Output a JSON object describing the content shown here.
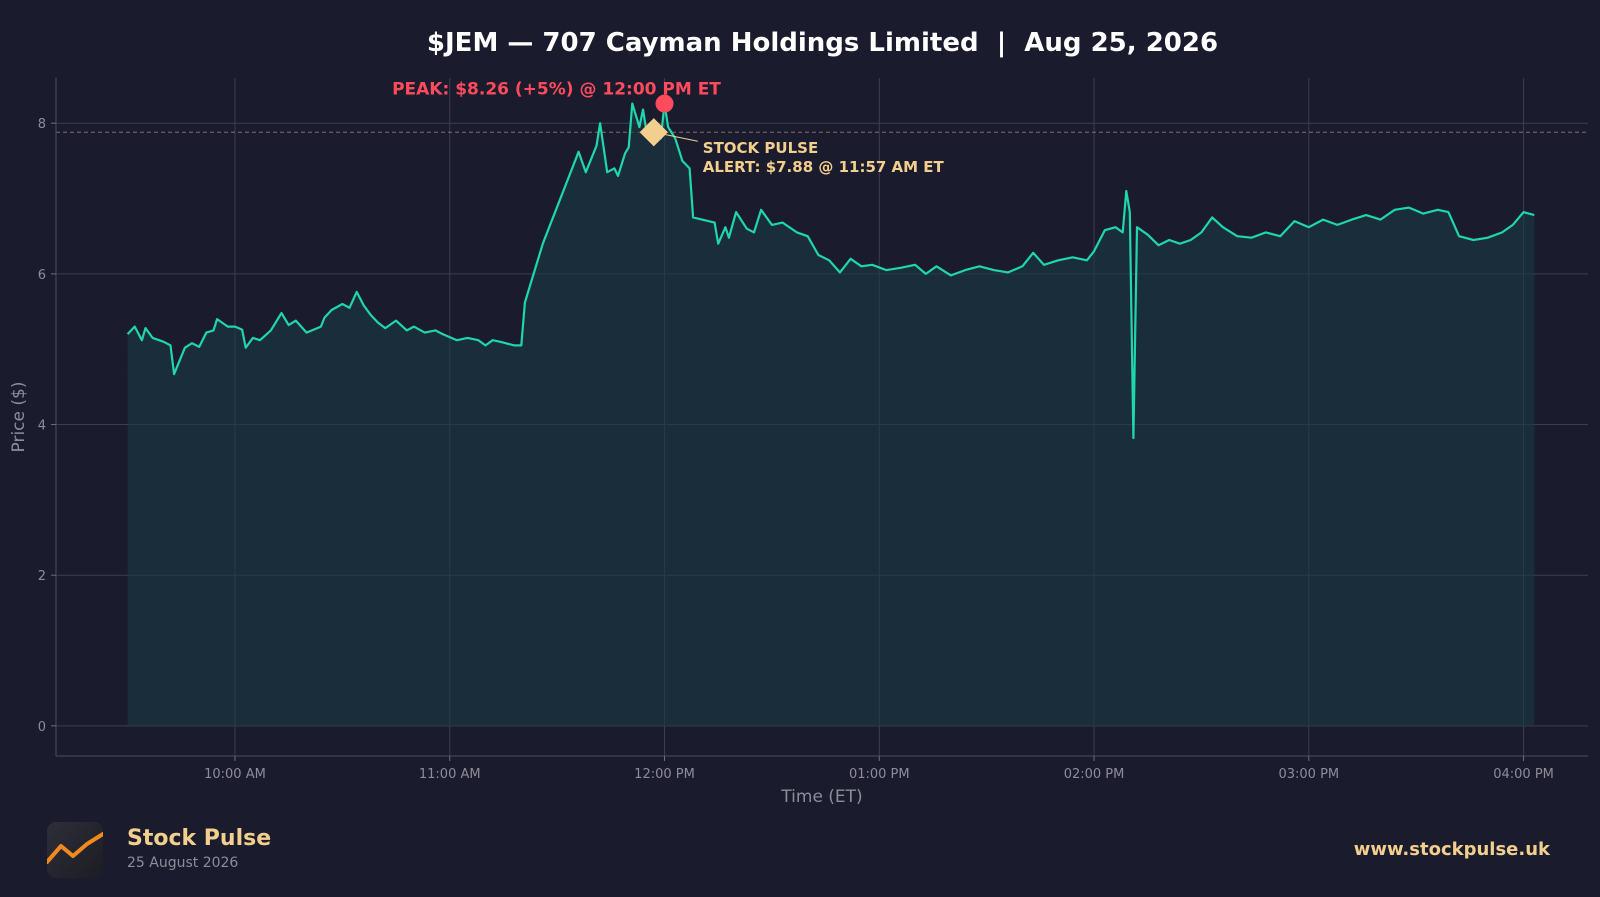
{
  "title": "$JEM — 707 Cayman Holdings Limited  |  Aug 25, 2026",
  "colors": {
    "background": "#1b1b2e",
    "line": "#1fd6ad",
    "peak": "#ff4b5c",
    "alert": "#f2cf8d",
    "grid": "#3a3e52",
    "text_muted": "#8d8d98"
  },
  "chart_data": {
    "type": "area",
    "title": "$JEM — 707 Cayman Holdings Limited  |  Aug 25, 2026",
    "xlabel": "Time (ET)",
    "ylabel": "Price ($)",
    "x_ticks": [
      "10:00 AM",
      "11:00 AM",
      "12:00 PM",
      "01:00 PM",
      "02:00 PM",
      "03:00 PM",
      "04:00 PM"
    ],
    "y_ticks": [
      0,
      2,
      4,
      6,
      8
    ],
    "ylim": [
      -0.4,
      8.6
    ],
    "xlim": [
      "09:10",
      "16:18"
    ],
    "grid": true,
    "series": [
      {
        "points": [
          [
            "09:30",
            5.2
          ],
          [
            "09:32",
            5.3
          ],
          [
            "09:34",
            5.12
          ],
          [
            "09:35",
            5.28
          ],
          [
            "09:37",
            5.15
          ],
          [
            "09:40",
            5.1
          ],
          [
            "09:42",
            5.05
          ],
          [
            "09:43",
            4.67
          ],
          [
            "09:46",
            5.02
          ],
          [
            "09:48",
            5.08
          ],
          [
            "09:50",
            5.03
          ],
          [
            "09:52",
            5.22
          ],
          [
            "09:54",
            5.25
          ],
          [
            "09:55",
            5.4
          ],
          [
            "09:58",
            5.3
          ],
          [
            "10:00",
            5.3
          ],
          [
            "10:02",
            5.26
          ],
          [
            "10:03",
            5.02
          ],
          [
            "10:05",
            5.15
          ],
          [
            "10:07",
            5.12
          ],
          [
            "10:10",
            5.25
          ],
          [
            "10:13",
            5.48
          ],
          [
            "10:15",
            5.32
          ],
          [
            "10:17",
            5.38
          ],
          [
            "10:20",
            5.22
          ],
          [
            "10:24",
            5.3
          ],
          [
            "10:25",
            5.42
          ],
          [
            "10:27",
            5.52
          ],
          [
            "10:30",
            5.6
          ],
          [
            "10:32",
            5.55
          ],
          [
            "10:34",
            5.76
          ],
          [
            "10:36",
            5.58
          ],
          [
            "10:38",
            5.45
          ],
          [
            "10:40",
            5.35
          ],
          [
            "10:42",
            5.28
          ],
          [
            "10:45",
            5.38
          ],
          [
            "10:48",
            5.25
          ],
          [
            "10:50",
            5.3
          ],
          [
            "10:53",
            5.22
          ],
          [
            "10:56",
            5.25
          ],
          [
            "10:58",
            5.2
          ],
          [
            "11:02",
            5.12
          ],
          [
            "11:05",
            5.15
          ],
          [
            "11:08",
            5.12
          ],
          [
            "11:10",
            5.05
          ],
          [
            "11:12",
            5.12
          ],
          [
            "11:14",
            5.1
          ],
          [
            "11:18",
            5.05
          ],
          [
            "11:20",
            5.05
          ],
          [
            "11:21",
            5.62
          ],
          [
            "11:26",
            6.4
          ],
          [
            "11:36",
            7.62
          ],
          [
            "11:38",
            7.35
          ],
          [
            "11:41",
            7.7
          ],
          [
            "11:42",
            8.0
          ],
          [
            "11:44",
            7.35
          ],
          [
            "11:46",
            7.4
          ],
          [
            "11:47",
            7.3
          ],
          [
            "11:49",
            7.6
          ],
          [
            "11:50",
            7.68
          ],
          [
            "11:51",
            8.26
          ],
          [
            "11:53",
            7.95
          ],
          [
            "11:54",
            8.18
          ],
          [
            "11:55",
            7.88
          ],
          [
            "11:57",
            7.88
          ],
          [
            "11:59",
            7.8
          ],
          [
            "12:00",
            8.26
          ],
          [
            "12:01",
            7.95
          ],
          [
            "12:03",
            7.8
          ],
          [
            "12:05",
            7.5
          ],
          [
            "12:07",
            7.4
          ],
          [
            "12:08",
            6.75
          ],
          [
            "12:14",
            6.68
          ],
          [
            "12:15",
            6.4
          ],
          [
            "12:17",
            6.62
          ],
          [
            "12:18",
            6.48
          ],
          [
            "12:20",
            6.82
          ],
          [
            "12:23",
            6.6
          ],
          [
            "12:25",
            6.55
          ],
          [
            "12:27",
            6.85
          ],
          [
            "12:30",
            6.65
          ],
          [
            "12:33",
            6.68
          ],
          [
            "12:37",
            6.55
          ],
          [
            "12:40",
            6.5
          ],
          [
            "12:43",
            6.25
          ],
          [
            "12:46",
            6.18
          ],
          [
            "12:49",
            6.02
          ],
          [
            "12:52",
            6.2
          ],
          [
            "12:55",
            6.1
          ],
          [
            "12:58",
            6.12
          ],
          [
            "13:02",
            6.05
          ],
          [
            "13:06",
            6.08
          ],
          [
            "13:10",
            6.12
          ],
          [
            "13:13",
            6.0
          ],
          [
            "13:16",
            6.1
          ],
          [
            "13:20",
            5.98
          ],
          [
            "13:24",
            6.05
          ],
          [
            "13:28",
            6.1
          ],
          [
            "13:32",
            6.05
          ],
          [
            "13:36",
            6.02
          ],
          [
            "13:40",
            6.1
          ],
          [
            "13:43",
            6.28
          ],
          [
            "13:46",
            6.12
          ],
          [
            "13:50",
            6.18
          ],
          [
            "13:54",
            6.22
          ],
          [
            "13:58",
            6.18
          ],
          [
            "14:00",
            6.3
          ],
          [
            "14:03",
            6.58
          ],
          [
            "14:06",
            6.62
          ],
          [
            "14:08",
            6.55
          ],
          [
            "14:09",
            7.1
          ],
          [
            "14:10",
            6.82
          ],
          [
            "14:11",
            3.82
          ],
          [
            "14:12",
            6.62
          ],
          [
            "14:15",
            6.52
          ],
          [
            "14:18",
            6.38
          ],
          [
            "14:21",
            6.45
          ],
          [
            "14:24",
            6.4
          ],
          [
            "14:27",
            6.45
          ],
          [
            "14:30",
            6.55
          ],
          [
            "14:33",
            6.75
          ],
          [
            "14:36",
            6.62
          ],
          [
            "14:40",
            6.5
          ],
          [
            "14:44",
            6.48
          ],
          [
            "14:48",
            6.55
          ],
          [
            "14:52",
            6.5
          ],
          [
            "14:56",
            6.7
          ],
          [
            "15:00",
            6.62
          ],
          [
            "15:04",
            6.72
          ],
          [
            "15:08",
            6.65
          ],
          [
            "15:12",
            6.72
          ],
          [
            "15:16",
            6.78
          ],
          [
            "15:20",
            6.72
          ],
          [
            "15:24",
            6.85
          ],
          [
            "15:28",
            6.88
          ],
          [
            "15:32",
            6.8
          ],
          [
            "15:36",
            6.85
          ],
          [
            "15:39",
            6.82
          ],
          [
            "15:42",
            6.5
          ],
          [
            "15:46",
            6.45
          ],
          [
            "15:50",
            6.48
          ],
          [
            "15:54",
            6.55
          ],
          [
            "15:57",
            6.65
          ],
          [
            "16:00",
            6.82
          ],
          [
            "16:03",
            6.78
          ]
        ]
      }
    ],
    "reference_line": {
      "y": 7.88,
      "style": "dashed"
    },
    "annotations": {
      "peak": {
        "label": "PEAK: $8.26 (+5%) @ 12:00 PM ET",
        "x": "12:00",
        "y": 8.26
      },
      "alert": {
        "line1": "STOCK PULSE",
        "line2": "ALERT: $7.88 @ 11:57 AM ET",
        "x": "11:57",
        "y": 7.88
      }
    }
  },
  "footer": {
    "brand_name": "Stock Pulse",
    "date": "25 August 2026",
    "url": "www.stockpulse.uk",
    "logo_icon": "trend-line-icon"
  }
}
